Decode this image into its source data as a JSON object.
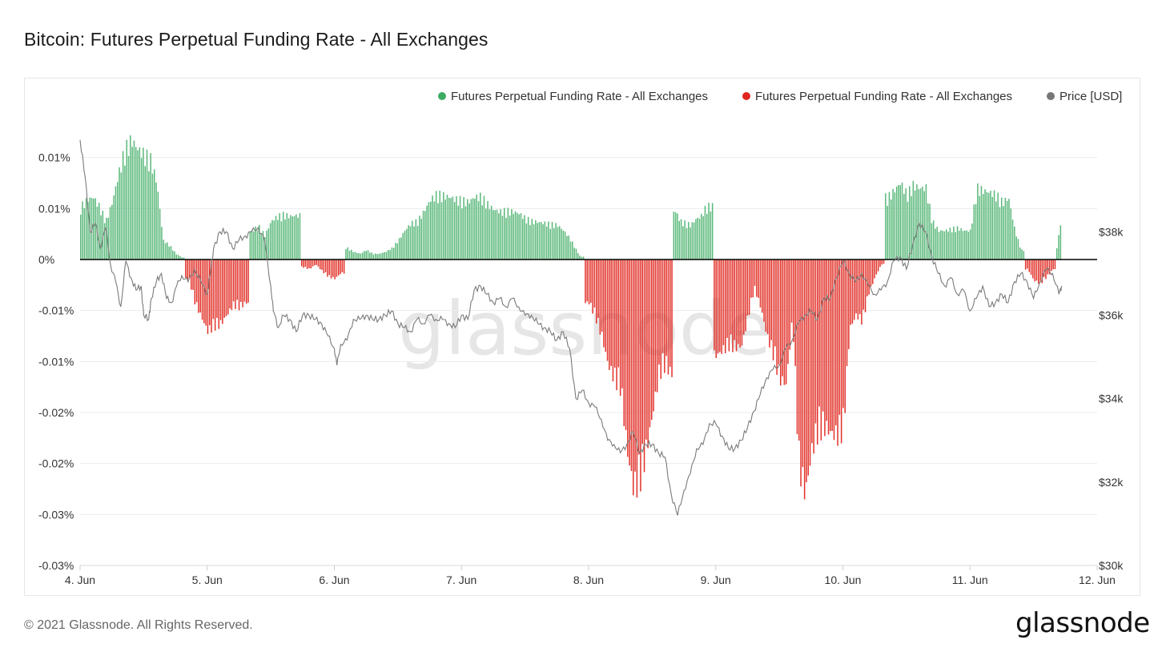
{
  "title": "Bitcoin: Futures Perpetual Funding Rate - All Exchanges",
  "footer": "© 2021 Glassnode. All Rights Reserved.",
  "logo": "glassnode",
  "watermark": "glassnode",
  "colors": {
    "positive": "#3dab63",
    "negative": "#e0271f",
    "price": "#7a7a7a",
    "zero": "#000000",
    "grid": "#ececec"
  },
  "chart_data": {
    "type": "bar",
    "title": "Bitcoin: Futures Perpetual Funding Rate - All Exchanges",
    "legend": [
      {
        "label": "Futures Perpetual Funding Rate - All Exchanges",
        "color": "#3dab63"
      },
      {
        "label": "Futures Perpetual Funding Rate - All Exchanges",
        "color": "#e0271f"
      },
      {
        "label": "Price [USD]",
        "color": "#777777"
      }
    ],
    "legend_position": "top-right",
    "grid": true,
    "x_ticks": [
      "4. Jun",
      "5. Jun",
      "6. Jun",
      "7. Jun",
      "8. Jun",
      "9. Jun",
      "10. Jun",
      "11. Jun",
      "12. Jun"
    ],
    "y_left_ticks": [
      "0.01%",
      "0.01%",
      "0%",
      "-0.01%",
      "-0.01%",
      "-0.02%",
      "-0.02%",
      "-0.03%",
      "-0.03%"
    ],
    "y_left_values": [
      0.01,
      0.005,
      0,
      -0.005,
      -0.01,
      -0.015,
      -0.02,
      -0.025,
      -0.03
    ],
    "y_left_range": [
      -0.03,
      0.015
    ],
    "y_right_ticks": [
      "$38k",
      "$36k",
      "$34k",
      "$32k",
      "$30k"
    ],
    "y_right_values": [
      38000,
      36000,
      34000,
      32000,
      30000
    ],
    "y_right_range": [
      30000,
      41000
    ],
    "x_range_days": [
      4.0,
      12.0
    ],
    "funding_rate_series": [
      [
        4.0,
        0.0055
      ],
      [
        4.05,
        0.0062
      ],
      [
        4.1,
        0.0065
      ],
      [
        4.15,
        0.0055
      ],
      [
        4.2,
        0.004
      ],
      [
        4.25,
        0.006
      ],
      [
        4.3,
        0.009
      ],
      [
        4.35,
        0.0115
      ],
      [
        4.4,
        0.0125
      ],
      [
        4.45,
        0.0115
      ],
      [
        4.5,
        0.011
      ],
      [
        4.55,
        0.0105
      ],
      [
        4.6,
        0.008
      ],
      [
        4.65,
        0.002
      ],
      [
        4.7,
        0.0015
      ],
      [
        4.75,
        0.0006
      ],
      [
        4.8,
        0.0002
      ],
      [
        4.85,
        -0.002
      ],
      [
        4.9,
        -0.0045
      ],
      [
        4.95,
        -0.006
      ],
      [
        5.0,
        -0.0075
      ],
      [
        5.05,
        -0.007
      ],
      [
        5.1,
        -0.0068
      ],
      [
        5.15,
        -0.0058
      ],
      [
        5.2,
        -0.0048
      ],
      [
        5.25,
        -0.005
      ],
      [
        5.3,
        -0.0045
      ],
      [
        5.35,
        0.003
      ],
      [
        5.4,
        0.0035
      ],
      [
        5.45,
        0.0025
      ],
      [
        5.5,
        0.004
      ],
      [
        5.55,
        0.0045
      ],
      [
        5.6,
        0.0047
      ],
      [
        5.65,
        0.0045
      ],
      [
        5.7,
        0.0046
      ],
      [
        5.75,
        -0.0008
      ],
      [
        5.8,
        -0.001
      ],
      [
        5.85,
        -0.0005
      ],
      [
        5.9,
        -0.0012
      ],
      [
        5.95,
        -0.0018
      ],
      [
        6.0,
        -0.002
      ],
      [
        6.05,
        -0.0014
      ],
      [
        6.1,
        0.0012
      ],
      [
        6.15,
        0.0008
      ],
      [
        6.2,
        0.0006
      ],
      [
        6.25,
        0.001
      ],
      [
        6.3,
        0.0006
      ],
      [
        6.35,
        0.0006
      ],
      [
        6.4,
        0.0008
      ],
      [
        6.45,
        0.0012
      ],
      [
        6.5,
        0.002
      ],
      [
        6.55,
        0.003
      ],
      [
        6.6,
        0.0038
      ],
      [
        6.65,
        0.004
      ],
      [
        6.7,
        0.005
      ],
      [
        6.75,
        0.0062
      ],
      [
        6.8,
        0.0068
      ],
      [
        6.85,
        0.0067
      ],
      [
        6.9,
        0.0065
      ],
      [
        6.95,
        0.0063
      ],
      [
        7.0,
        0.0062
      ],
      [
        7.05,
        0.006
      ],
      [
        7.1,
        0.0065
      ],
      [
        7.15,
        0.0066
      ],
      [
        7.2,
        0.0058
      ],
      [
        7.25,
        0.0052
      ],
      [
        7.3,
        0.005
      ],
      [
        7.35,
        0.0051
      ],
      [
        7.4,
        0.005
      ],
      [
        7.45,
        0.0048
      ],
      [
        7.5,
        0.0043
      ],
      [
        7.55,
        0.004
      ],
      [
        7.6,
        0.0039
      ],
      [
        7.65,
        0.0038
      ],
      [
        7.7,
        0.0037
      ],
      [
        7.75,
        0.0036
      ],
      [
        7.8,
        0.003
      ],
      [
        7.85,
        0.0022
      ],
      [
        7.9,
        0.001
      ],
      [
        7.93,
        0.0003
      ],
      [
        8.0,
        -0.0045
      ],
      [
        8.05,
        -0.006
      ],
      [
        8.1,
        -0.008
      ],
      [
        8.15,
        -0.011
      ],
      [
        8.2,
        -0.0125
      ],
      [
        8.25,
        -0.0135
      ],
      [
        8.3,
        -0.02
      ],
      [
        8.35,
        -0.024
      ],
      [
        8.4,
        -0.023
      ],
      [
        8.45,
        -0.02
      ],
      [
        8.5,
        -0.016
      ],
      [
        8.55,
        -0.012
      ],
      [
        8.6,
        -0.011
      ],
      [
        8.65,
        -0.012
      ],
      [
        8.68,
        0.005
      ],
      [
        8.72,
        0.004
      ],
      [
        8.76,
        0.0038
      ],
      [
        8.8,
        0.0036
      ],
      [
        8.84,
        0.0042
      ],
      [
        8.88,
        0.0045
      ],
      [
        8.92,
        0.0055
      ],
      [
        8.95,
        0.0056
      ],
      [
        9.0,
        -0.01
      ],
      [
        9.05,
        -0.0095
      ],
      [
        9.1,
        -0.009
      ],
      [
        9.15,
        -0.0092
      ],
      [
        9.2,
        -0.009
      ],
      [
        9.25,
        -0.006
      ],
      [
        9.3,
        -0.003
      ],
      [
        9.35,
        -0.005
      ],
      [
        9.4,
        -0.008
      ],
      [
        9.45,
        -0.01
      ],
      [
        9.5,
        -0.0125
      ],
      [
        9.55,
        -0.013
      ],
      [
        9.6,
        -0.006
      ],
      [
        9.65,
        -0.0215
      ],
      [
        9.7,
        -0.0245
      ],
      [
        9.75,
        -0.02
      ],
      [
        9.8,
        -0.018
      ],
      [
        9.85,
        -0.0175
      ],
      [
        9.9,
        -0.018
      ],
      [
        9.95,
        -0.0185
      ],
      [
        10.0,
        -0.0178
      ],
      [
        10.05,
        -0.0072
      ],
      [
        10.1,
        -0.0058
      ],
      [
        10.15,
        -0.0065
      ],
      [
        10.2,
        -0.0035
      ],
      [
        10.25,
        -0.0018
      ],
      [
        10.3,
        -0.0005
      ],
      [
        10.35,
        0.0065
      ],
      [
        10.4,
        0.0072
      ],
      [
        10.45,
        0.008
      ],
      [
        10.5,
        0.0068
      ],
      [
        10.55,
        0.0078
      ],
      [
        10.6,
        0.0074
      ],
      [
        10.65,
        0.0075
      ],
      [
        10.7,
        0.004
      ],
      [
        10.75,
        0.003
      ],
      [
        10.8,
        0.003
      ],
      [
        10.85,
        0.0032
      ],
      [
        10.9,
        0.0033
      ],
      [
        10.95,
        0.003
      ],
      [
        11.0,
        0.003
      ],
      [
        11.05,
        0.0075
      ],
      [
        11.1,
        0.0072
      ],
      [
        11.15,
        0.007
      ],
      [
        11.2,
        0.0068
      ],
      [
        11.25,
        0.006
      ],
      [
        11.3,
        0.0064
      ],
      [
        11.35,
        0.003
      ],
      [
        11.4,
        0.001
      ],
      [
        11.45,
        -0.001
      ],
      [
        11.5,
        -0.0022
      ],
      [
        11.55,
        -0.0025
      ],
      [
        11.6,
        -0.0018
      ],
      [
        11.65,
        -0.001
      ],
      [
        11.68,
        0.0012
      ],
      [
        11.72,
        0.005
      ]
    ],
    "price_series": [
      [
        4.0,
        40200
      ],
      [
        4.04,
        39300
      ],
      [
        4.08,
        38000
      ],
      [
        4.12,
        38200
      ],
      [
        4.16,
        37600
      ],
      [
        4.2,
        38100
      ],
      [
        4.24,
        37200
      ],
      [
        4.28,
        36800
      ],
      [
        4.32,
        36200
      ],
      [
        4.36,
        37300
      ],
      [
        4.4,
        36900
      ],
      [
        4.44,
        36600
      ],
      [
        4.48,
        36700
      ],
      [
        4.5,
        36000
      ],
      [
        4.54,
        35900
      ],
      [
        4.56,
        36400
      ],
      [
        4.6,
        36800
      ],
      [
        4.64,
        37000
      ],
      [
        4.68,
        36400
      ],
      [
        4.72,
        36300
      ],
      [
        4.76,
        36700
      ],
      [
        4.8,
        36950
      ],
      [
        4.85,
        36800
      ],
      [
        4.9,
        37100
      ],
      [
        4.95,
        36800
      ],
      [
        5.0,
        36500
      ],
      [
        5.02,
        36900
      ],
      [
        5.05,
        37600
      ],
      [
        5.1,
        38000
      ],
      [
        5.15,
        38000
      ],
      [
        5.2,
        37600
      ],
      [
        5.25,
        37800
      ],
      [
        5.3,
        37900
      ],
      [
        5.35,
        38000
      ],
      [
        5.4,
        38100
      ],
      [
        5.45,
        37800
      ],
      [
        5.5,
        36700
      ],
      [
        5.52,
        36100
      ],
      [
        5.56,
        35700
      ],
      [
        5.6,
        36000
      ],
      [
        5.65,
        35900
      ],
      [
        5.7,
        35600
      ],
      [
        5.75,
        36000
      ],
      [
        5.8,
        36000
      ],
      [
        5.85,
        35900
      ],
      [
        5.9,
        35800
      ],
      [
        5.95,
        35500
      ],
      [
        6.0,
        35200
      ],
      [
        6.02,
        34800
      ],
      [
        6.05,
        35300
      ],
      [
        6.1,
        35400
      ],
      [
        6.15,
        35900
      ],
      [
        6.2,
        35900
      ],
      [
        6.25,
        36000
      ],
      [
        6.3,
        35900
      ],
      [
        6.35,
        35900
      ],
      [
        6.4,
        36000
      ],
      [
        6.45,
        36100
      ],
      [
        6.5,
        35800
      ],
      [
        6.55,
        35700
      ],
      [
        6.6,
        35600
      ],
      [
        6.65,
        35900
      ],
      [
        6.7,
        35800
      ],
      [
        6.75,
        36000
      ],
      [
        6.8,
        35900
      ],
      [
        6.85,
        35900
      ],
      [
        6.9,
        35800
      ],
      [
        6.95,
        35700
      ],
      [
        7.0,
        36000
      ],
      [
        7.05,
        35900
      ],
      [
        7.1,
        36600
      ],
      [
        7.15,
        36700
      ],
      [
        7.2,
        36500
      ],
      [
        7.25,
        36300
      ],
      [
        7.3,
        36400
      ],
      [
        7.35,
        36200
      ],
      [
        7.4,
        36400
      ],
      [
        7.45,
        36200
      ],
      [
        7.5,
        36000
      ],
      [
        7.55,
        36000
      ],
      [
        7.6,
        35800
      ],
      [
        7.65,
        35700
      ],
      [
        7.7,
        35600
      ],
      [
        7.75,
        35400
      ],
      [
        7.8,
        35600
      ],
      [
        7.85,
        35200
      ],
      [
        7.9,
        34000
      ],
      [
        7.95,
        34200
      ],
      [
        8.0,
        33900
      ],
      [
        8.05,
        33800
      ],
      [
        8.1,
        33500
      ],
      [
        8.15,
        33000
      ],
      [
        8.2,
        32900
      ],
      [
        8.25,
        32700
      ],
      [
        8.3,
        32900
      ],
      [
        8.35,
        33200
      ],
      [
        8.4,
        32700
      ],
      [
        8.45,
        32900
      ],
      [
        8.5,
        32900
      ],
      [
        8.55,
        32700
      ],
      [
        8.6,
        32600
      ],
      [
        8.65,
        31700
      ],
      [
        8.7,
        31200
      ],
      [
        8.75,
        31800
      ],
      [
        8.8,
        32200
      ],
      [
        8.85,
        32800
      ],
      [
        8.9,
        32900
      ],
      [
        8.95,
        33400
      ],
      [
        9.0,
        33400
      ],
      [
        9.05,
        33100
      ],
      [
        9.1,
        32800
      ],
      [
        9.15,
        32800
      ],
      [
        9.2,
        33000
      ],
      [
        9.25,
        33300
      ],
      [
        9.3,
        33700
      ],
      [
        9.35,
        34100
      ],
      [
        9.4,
        34500
      ],
      [
        9.45,
        34700
      ],
      [
        9.5,
        34800
      ],
      [
        9.55,
        35200
      ],
      [
        9.6,
        35400
      ],
      [
        9.65,
        35800
      ],
      [
        9.7,
        36000
      ],
      [
        9.75,
        36100
      ],
      [
        9.8,
        35900
      ],
      [
        9.85,
        36400
      ],
      [
        9.9,
        36400
      ],
      [
        9.95,
        36900
      ],
      [
        10.0,
        37300
      ],
      [
        10.05,
        37000
      ],
      [
        10.1,
        36800
      ],
      [
        10.15,
        37000
      ],
      [
        10.2,
        36700
      ],
      [
        10.25,
        36500
      ],
      [
        10.3,
        36600
      ],
      [
        10.35,
        36800
      ],
      [
        10.4,
        37300
      ],
      [
        10.45,
        37400
      ],
      [
        10.5,
        37100
      ],
      [
        10.55,
        37700
      ],
      [
        10.6,
        38200
      ],
      [
        10.65,
        38000
      ],
      [
        10.7,
        37400
      ],
      [
        10.75,
        37000
      ],
      [
        10.8,
        36700
      ],
      [
        10.85,
        36900
      ],
      [
        10.9,
        36500
      ],
      [
        10.95,
        36600
      ],
      [
        11.0,
        36100
      ],
      [
        11.05,
        36400
      ],
      [
        11.1,
        36700
      ],
      [
        11.15,
        36200
      ],
      [
        11.2,
        36300
      ],
      [
        11.25,
        36500
      ],
      [
        11.3,
        36300
      ],
      [
        11.35,
        36800
      ],
      [
        11.4,
        37000
      ],
      [
        11.45,
        36800
      ],
      [
        11.5,
        36400
      ],
      [
        11.55,
        36800
      ],
      [
        11.6,
        37100
      ],
      [
        11.65,
        37000
      ],
      [
        11.7,
        36500
      ],
      [
        11.72,
        36700
      ]
    ]
  }
}
